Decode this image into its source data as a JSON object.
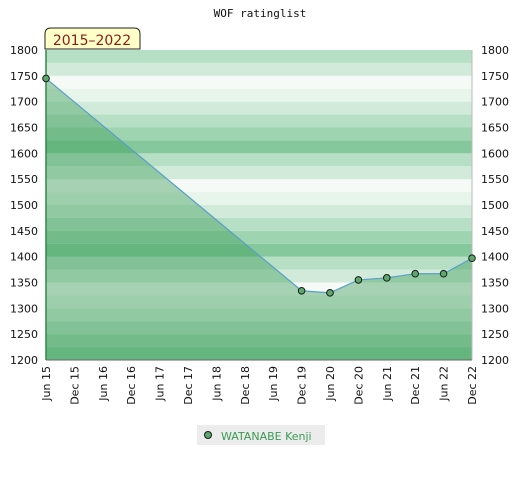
{
  "chart_data": {
    "type": "area",
    "title": "WOF ratinglist",
    "period_badge": "2015–2022",
    "xlabel": "",
    "ylabel": "",
    "x_categories": [
      "Jun 15",
      "Dec 15",
      "Jun 16",
      "Dec 16",
      "Jun 17",
      "Dec 17",
      "Jun 18",
      "Dec 18",
      "Jun 19",
      "Dec 19",
      "Jun 20",
      "Dec 20",
      "Jun 21",
      "Dec 21",
      "Jun 22",
      "Dec 22"
    ],
    "yticks": [
      1200,
      1250,
      1300,
      1350,
      1400,
      1450,
      1500,
      1550,
      1600,
      1650,
      1700,
      1750,
      1800
    ],
    "ylim": [
      1200,
      1800
    ],
    "grid": false,
    "legend_position": "bottom",
    "series": [
      {
        "name": "WATANABE Kenji",
        "color": "#3a9a55",
        "line_color": "#5aa0c8",
        "x": [
          "Jun 15",
          "Dec 19",
          "Jun 20",
          "Dec 20",
          "Jun 21",
          "Dec 21",
          "Jun 22",
          "Dec 22"
        ],
        "values": [
          1745,
          1334,
          1330,
          1355,
          1359,
          1367,
          1367,
          1397
        ]
      }
    ]
  }
}
